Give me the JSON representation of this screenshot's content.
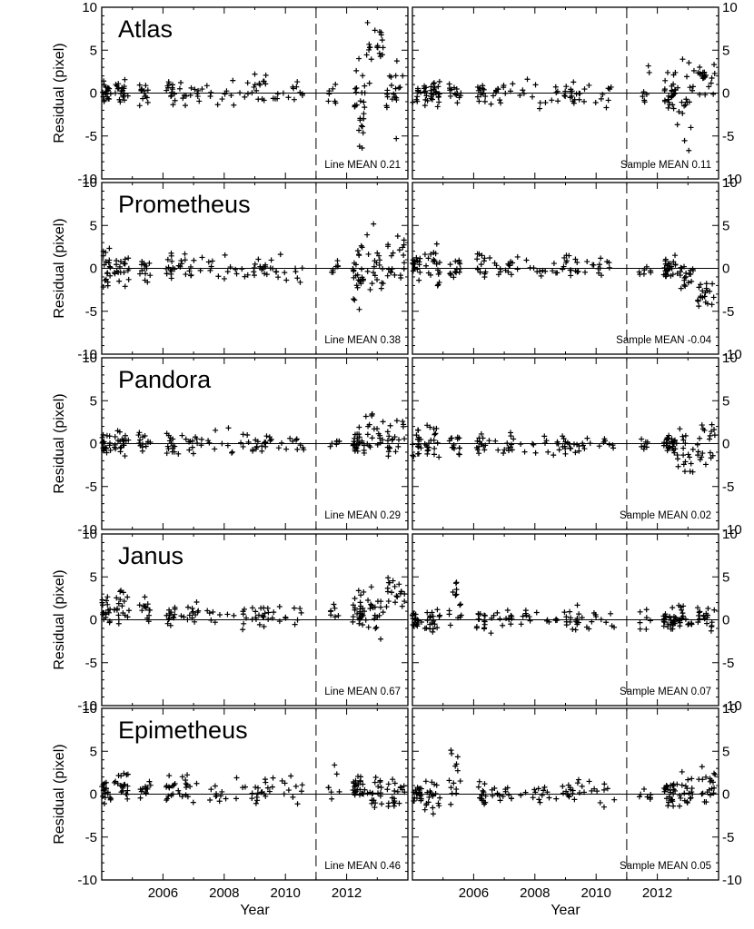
{
  "chart_data": {
    "type": "scatter",
    "marker": "plus",
    "xlabel": "Year",
    "ylabel": "Residual (pixel)",
    "xlim": [
      2004.0,
      2014.0
    ],
    "ylim": [
      -10,
      10
    ],
    "xticks": [
      2006,
      2008,
      2010,
      2012
    ],
    "yticks": [
      -10,
      -5,
      0,
      5,
      10
    ],
    "dashed_vline_x": 2011.0,
    "zero_line": true,
    "columns": [
      "line",
      "sample"
    ],
    "panels": [
      {
        "moon": "Atlas",
        "line": {
          "note": "Line MEAN 0.21",
          "clusters": [
            [
              2004.0,
              2004.3,
              0,
              1.4,
              18
            ],
            [
              2004.4,
              2004.9,
              0,
              1.4,
              20
            ],
            [
              2005.2,
              2005.6,
              0,
              1.3,
              14
            ],
            [
              2006.1,
              2006.4,
              0,
              1.3,
              14
            ],
            [
              2006.5,
              2007.3,
              0,
              1.4,
              14
            ],
            [
              2007.4,
              2008.8,
              0,
              1.4,
              14
            ],
            [
              2008.9,
              2009.4,
              1,
              1.8,
              14
            ],
            [
              2009.4,
              2010.6,
              0,
              1.4,
              14
            ],
            [
              2011.4,
              2011.8,
              0,
              1.5,
              7
            ],
            [
              2012.2,
              2012.6,
              -2,
              5,
              26
            ],
            [
              2012.6,
              2013.2,
              5,
              3.2,
              20
            ],
            [
              2013.3,
              2013.9,
              1,
              5,
              20
            ]
          ]
        },
        "sample": {
          "note": "Sample MEAN 0.11",
          "clusters": [
            [
              2004.0,
              2004.9,
              0,
              1.4,
              18
            ],
            [
              2004.4,
              2004.9,
              0,
              1.4,
              20
            ],
            [
              2005.2,
              2005.6,
              0,
              1.3,
              14
            ],
            [
              2006.1,
              2006.4,
              0,
              1.3,
              14
            ],
            [
              2006.5,
              2007.3,
              0,
              1.4,
              14
            ],
            [
              2007.4,
              2008.8,
              0,
              1.4,
              14
            ],
            [
              2008.9,
              2009.4,
              0,
              1.4,
              14
            ],
            [
              2009.4,
              2010.6,
              0,
              1.4,
              14
            ],
            [
              2011.4,
              2011.8,
              1,
              2.5,
              7
            ],
            [
              2012.2,
              2012.6,
              0,
              2.5,
              26
            ],
            [
              2012.6,
              2013.2,
              -1,
              5,
              20
            ],
            [
              2013.3,
              2013.9,
              2,
              2,
              20
            ]
          ]
        }
      },
      {
        "moon": "Prometheus",
        "line": {
          "note": "Line MEAN 0.38",
          "clusters": [
            [
              2004.0,
              2004.3,
              0,
              2,
              18
            ],
            [
              2004.4,
              2004.9,
              0,
              2,
              20
            ],
            [
              2005.2,
              2005.6,
              0,
              1.5,
              14
            ],
            [
              2006.1,
              2006.4,
              0,
              1.5,
              14
            ],
            [
              2006.5,
              2007.3,
              0,
              1.5,
              14
            ],
            [
              2007.4,
              2008.8,
              0,
              1.5,
              14
            ],
            [
              2008.9,
              2009.4,
              0,
              1.5,
              14
            ],
            [
              2009.4,
              2010.6,
              0,
              1.5,
              14
            ],
            [
              2011.4,
              2011.8,
              0,
              1,
              7
            ],
            [
              2012.2,
              2012.6,
              -1,
              3.5,
              26
            ],
            [
              2012.6,
              2013.2,
              0,
              4,
              20
            ],
            [
              2013.3,
              2013.9,
              1,
              3,
              20
            ]
          ]
        },
        "sample": {
          "note": "Sample MEAN -0.04",
          "clusters": [
            [
              2004.0,
              2004.3,
              0,
              1.5,
              18
            ],
            [
              2004.4,
              2004.9,
              0,
              2.5,
              20
            ],
            [
              2005.2,
              2005.6,
              0,
              1.5,
              14
            ],
            [
              2006.1,
              2006.4,
              0,
              1.5,
              14
            ],
            [
              2006.5,
              2007.3,
              0,
              1.5,
              14
            ],
            [
              2007.4,
              2008.8,
              0,
              1.5,
              14
            ],
            [
              2008.9,
              2009.4,
              0,
              1.5,
              14
            ],
            [
              2009.4,
              2010.6,
              0,
              1.5,
              14
            ],
            [
              2011.4,
              2011.8,
              0,
              1,
              7
            ],
            [
              2012.2,
              2012.6,
              0,
              1.5,
              26
            ],
            [
              2012.6,
              2013.2,
              -1,
              1.5,
              20
            ],
            [
              2013.3,
              2013.9,
              -3,
              1.5,
              20
            ]
          ]
        }
      },
      {
        "moon": "Pandora",
        "line": {
          "note": "Line MEAN 0.29",
          "clusters": [
            [
              2004.0,
              2004.3,
              0,
              1.4,
              18
            ],
            [
              2004.4,
              2004.9,
              0,
              1.4,
              20
            ],
            [
              2005.2,
              2005.6,
              0,
              1.4,
              14
            ],
            [
              2006.1,
              2006.4,
              0,
              1.4,
              14
            ],
            [
              2006.5,
              2007.3,
              0,
              1.4,
              14
            ],
            [
              2007.4,
              2008.8,
              0,
              1.4,
              14
            ],
            [
              2008.9,
              2009.4,
              0,
              1.4,
              14
            ],
            [
              2009.4,
              2010.6,
              0,
              1.4,
              14
            ],
            [
              2011.4,
              2011.8,
              0,
              0.8,
              7
            ],
            [
              2012.2,
              2012.6,
              0,
              1.5,
              26
            ],
            [
              2012.6,
              2013.2,
              1.5,
              2.5,
              20
            ],
            [
              2013.3,
              2013.9,
              1,
              2.5,
              20
            ]
          ]
        },
        "sample": {
          "note": "Sample MEAN 0.02",
          "clusters": [
            [
              2004.0,
              2004.3,
              0,
              1.4,
              18
            ],
            [
              2004.4,
              2004.9,
              0,
              2,
              20
            ],
            [
              2005.2,
              2005.6,
              0,
              1.4,
              14
            ],
            [
              2006.1,
              2006.4,
              0,
              1.4,
              14
            ],
            [
              2006.5,
              2007.3,
              0,
              1.4,
              14
            ],
            [
              2007.4,
              2008.8,
              0,
              1.4,
              14
            ],
            [
              2008.9,
              2009.4,
              0,
              1.4,
              14
            ],
            [
              2009.4,
              2010.6,
              0,
              1.4,
              14
            ],
            [
              2011.4,
              2011.8,
              0,
              0.8,
              7
            ],
            [
              2012.2,
              2012.6,
              0,
              1,
              26
            ],
            [
              2012.6,
              2013.2,
              -1.5,
              3,
              20
            ],
            [
              2013.3,
              2013.9,
              0,
              4,
              20
            ]
          ]
        }
      },
      {
        "moon": "Janus",
        "line": {
          "note": "Line MEAN 0.67",
          "clusters": [
            [
              2004.0,
              2004.3,
              1,
              2,
              18
            ],
            [
              2004.4,
              2004.9,
              1.5,
              2,
              20
            ],
            [
              2005.2,
              2005.6,
              1,
              1.5,
              14
            ],
            [
              2006.1,
              2006.4,
              0.5,
              1.5,
              14
            ],
            [
              2006.5,
              2007.3,
              1,
              1.5,
              14
            ],
            [
              2007.4,
              2008.8,
              0.5,
              1.4,
              14
            ],
            [
              2008.9,
              2009.4,
              0.5,
              1.4,
              14
            ],
            [
              2009.4,
              2010.6,
              0.5,
              1.4,
              14
            ],
            [
              2011.4,
              2011.8,
              1,
              1,
              7
            ],
            [
              2012.2,
              2012.6,
              1,
              2,
              26
            ],
            [
              2012.6,
              2013.2,
              1,
              2.5,
              20
            ],
            [
              2013.3,
              2013.9,
              3,
              3,
              20
            ]
          ]
        },
        "sample": {
          "note": "Sample MEAN 0.07",
          "clusters": [
            [
              2004.0,
              2004.3,
              0,
              1,
              18
            ],
            [
              2004.4,
              2004.9,
              0,
              1.5,
              20
            ],
            [
              2005.2,
              2005.6,
              2,
              3,
              14
            ],
            [
              2006.1,
              2006.4,
              0,
              1.5,
              14
            ],
            [
              2006.5,
              2007.3,
              0,
              1.4,
              14
            ],
            [
              2007.4,
              2008.8,
              0,
              1.4,
              14
            ],
            [
              2008.9,
              2009.4,
              0,
              1.4,
              14
            ],
            [
              2009.4,
              2010.6,
              0,
              1,
              14
            ],
            [
              2011.4,
              2011.8,
              0,
              1,
              7
            ],
            [
              2012.2,
              2012.6,
              0,
              1.2,
              26
            ],
            [
              2012.6,
              2013.2,
              0,
              1.5,
              20
            ],
            [
              2013.3,
              2013.9,
              0,
              1.5,
              20
            ]
          ]
        }
      },
      {
        "moon": "Epimetheus",
        "line": {
          "note": "Line MEAN 0.46",
          "clusters": [
            [
              2004.0,
              2004.3,
              0.5,
              1.5,
              18
            ],
            [
              2004.4,
              2004.9,
              1,
              1.8,
              20
            ],
            [
              2005.2,
              2005.6,
              0.5,
              1.5,
              14
            ],
            [
              2006.1,
              2006.4,
              0.5,
              1.5,
              14
            ],
            [
              2006.5,
              2007.3,
              1,
              1.5,
              14
            ],
            [
              2007.4,
              2008.8,
              0.5,
              1.5,
              14
            ],
            [
              2008.9,
              2009.4,
              0.5,
              1.5,
              14
            ],
            [
              2009.4,
              2010.6,
              0.5,
              1.5,
              14
            ],
            [
              2011.4,
              2011.8,
              1,
              2.5,
              7
            ],
            [
              2012.2,
              2012.6,
              1,
              1.5,
              26
            ],
            [
              2012.6,
              2013.2,
              0.5,
              2,
              20
            ],
            [
              2013.3,
              2013.9,
              0,
              2.5,
              20
            ]
          ]
        },
        "sample": {
          "note": "Sample MEAN 0.05",
          "clusters": [
            [
              2004.0,
              2004.3,
              0,
              1,
              18
            ],
            [
              2004.4,
              2004.9,
              0,
              2,
              20
            ],
            [
              2005.2,
              2005.6,
              2,
              3,
              14
            ],
            [
              2006.1,
              2006.4,
              0,
              1.5,
              14
            ],
            [
              2006.5,
              2007.3,
              0,
              1.4,
              14
            ],
            [
              2007.4,
              2008.8,
              0,
              1.4,
              14
            ],
            [
              2008.9,
              2009.4,
              0,
              1.4,
              14
            ],
            [
              2009.4,
              2010.6,
              0,
              1.4,
              14
            ],
            [
              2011.4,
              2011.8,
              0,
              1,
              7
            ],
            [
              2012.2,
              2012.6,
              0,
              1.5,
              26
            ],
            [
              2012.6,
              2013.2,
              0,
              2,
              20
            ],
            [
              2013.3,
              2013.9,
              1,
              2,
              20
            ]
          ]
        }
      }
    ]
  }
}
